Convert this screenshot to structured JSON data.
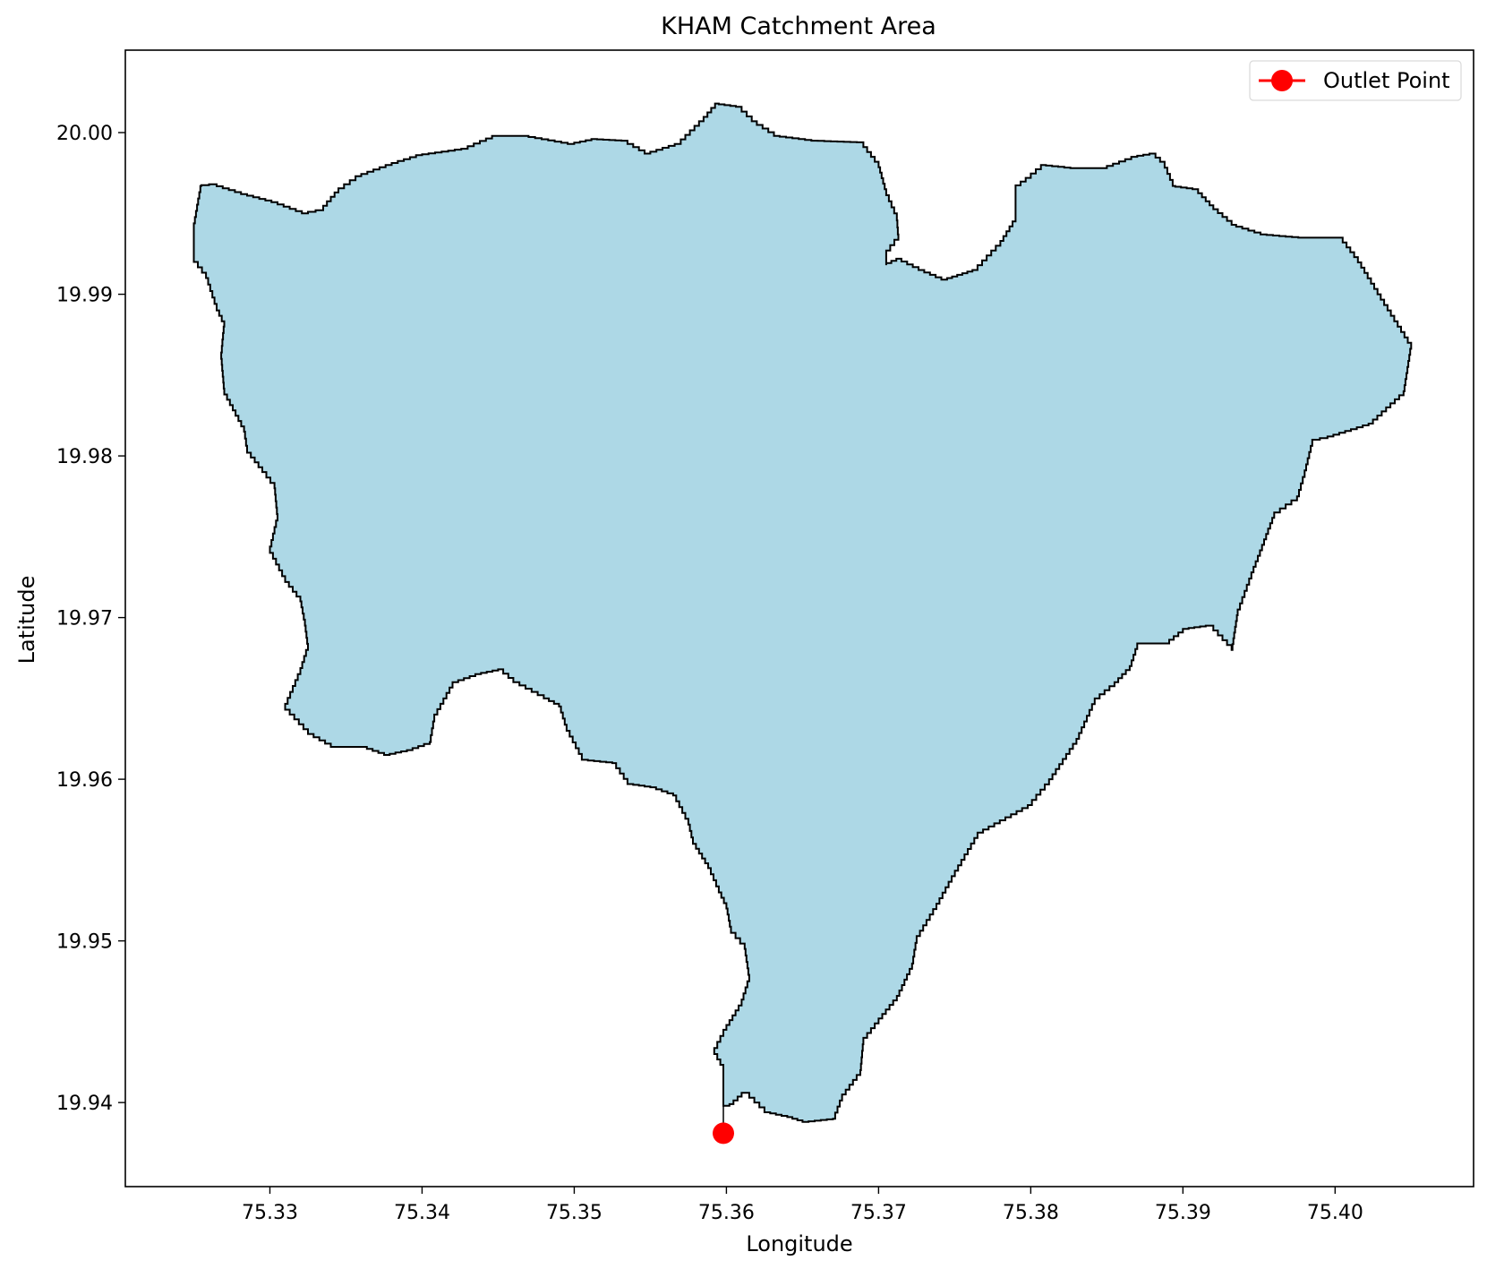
{
  "chart_data": {
    "type": "map",
    "title": "KHAM Catchment Area",
    "xlabel": "Longitude",
    "ylabel": "Latitude",
    "xlim": [
      75.3205,
      75.4091
    ],
    "ylim": [
      19.9348,
      20.0051
    ],
    "xticks": [
      75.33,
      75.34,
      75.35,
      75.36,
      75.37,
      75.38,
      75.39,
      75.4
    ],
    "xtick_labels": [
      "75.33",
      "75.34",
      "75.35",
      "75.36",
      "75.37",
      "75.38",
      "75.39",
      "75.40"
    ],
    "yticks": [
      19.94,
      19.95,
      19.96,
      19.97,
      19.98,
      19.99,
      20.0
    ],
    "ytick_labels": [
      "19.94",
      "19.95",
      "19.96",
      "19.97",
      "19.98",
      "19.99",
      "20.00"
    ],
    "grid": false,
    "legend": {
      "position": "top-right",
      "entries": [
        {
          "label": "Outlet Point",
          "color": "#ff0000",
          "marker": "circle"
        }
      ]
    },
    "catchment": {
      "fill": "#add8e6",
      "edge": "#000000",
      "boundary": [
        [
          75.3598,
          19.9398
        ],
        [
          75.3602,
          19.9399
        ],
        [
          75.361,
          19.9406
        ],
        [
          75.3615,
          19.9403
        ],
        [
          75.3625,
          19.9394
        ],
        [
          75.364,
          19.9391
        ],
        [
          75.365,
          19.9388
        ],
        [
          75.367,
          19.939
        ],
        [
          75.3676,
          19.9405
        ],
        [
          75.3688,
          19.942
        ],
        [
          75.369,
          19.944
        ],
        [
          75.37,
          19.9452
        ],
        [
          75.3712,
          19.9466
        ],
        [
          75.3722,
          19.9486
        ],
        [
          75.3725,
          19.9503
        ],
        [
          75.3738,
          19.9523
        ],
        [
          75.3748,
          19.954
        ],
        [
          75.3765,
          19.9567
        ],
        [
          75.3798,
          19.9584
        ],
        [
          75.3812,
          19.96
        ],
        [
          75.383,
          19.9625
        ],
        [
          75.3842,
          19.965
        ],
        [
          75.3855,
          19.966
        ],
        [
          75.3865,
          19.967
        ],
        [
          75.387,
          19.9684
        ],
        [
          75.3888,
          19.9684
        ],
        [
          75.39,
          19.9693
        ],
        [
          75.3915,
          19.9695
        ],
        [
          75.392,
          19.9692
        ],
        [
          75.3932,
          19.968
        ],
        [
          75.3936,
          19.9705
        ],
        [
          75.3945,
          19.9728
        ],
        [
          75.3952,
          19.9745
        ],
        [
          75.396,
          19.9765
        ],
        [
          75.3975,
          19.9775
        ],
        [
          75.398,
          19.9791
        ],
        [
          75.3985,
          19.981
        ],
        [
          75.3995,
          19.9812
        ],
        [
          75.4022,
          19.982
        ],
        [
          75.4045,
          19.984
        ],
        [
          75.405,
          19.987
        ],
        [
          75.403,
          19.99
        ],
        [
          75.4015,
          19.9923
        ],
        [
          75.4005,
          19.9935
        ],
        [
          75.398,
          19.9935
        ],
        [
          75.3955,
          19.9937
        ],
        [
          75.3935,
          19.9943
        ],
        [
          75.392,
          19.9955
        ],
        [
          75.391,
          19.9965
        ],
        [
          75.3895,
          19.9967
        ],
        [
          75.3888,
          19.9982
        ],
        [
          75.3882,
          19.9987
        ],
        [
          75.387,
          19.9985
        ],
        [
          75.385,
          19.9978
        ],
        [
          75.383,
          19.9978
        ],
        [
          75.381,
          19.998
        ],
        [
          75.38,
          19.9972
        ],
        [
          75.379,
          19.9965
        ],
        [
          75.379,
          19.9945
        ],
        [
          75.378,
          19.993
        ],
        [
          75.3765,
          19.9915
        ],
        [
          75.3755,
          19.9912
        ],
        [
          75.3745,
          19.9909
        ],
        [
          75.373,
          19.9915
        ],
        [
          75.3715,
          19.9922
        ],
        [
          75.3705,
          19.9918
        ],
        [
          75.3705,
          19.9927
        ],
        [
          75.3713,
          19.9937
        ],
        [
          75.3712,
          19.995
        ],
        [
          75.3705,
          19.9965
        ],
        [
          75.37,
          19.9982
        ],
        [
          75.369,
          19.9994
        ],
        [
          75.366,
          19.9995
        ],
        [
          75.3635,
          19.9998
        ],
        [
          75.362,
          20.0007
        ],
        [
          75.361,
          20.0016
        ],
        [
          75.3595,
          20.0018
        ],
        [
          75.3585,
          20.0007
        ],
        [
          75.357,
          19.9993
        ],
        [
          75.355,
          19.9987
        ],
        [
          75.3535,
          19.9995
        ],
        [
          75.3515,
          19.9996
        ],
        [
          75.35,
          19.9993
        ],
        [
          75.347,
          19.9998
        ],
        [
          75.345,
          19.9998
        ],
        [
          75.343,
          19.999
        ],
        [
          75.34,
          19.9986
        ],
        [
          75.338,
          19.998
        ],
        [
          75.336,
          19.9973
        ],
        [
          75.3345,
          19.9963
        ],
        [
          75.3335,
          19.9952
        ],
        [
          75.3325,
          19.995
        ],
        [
          75.3305,
          19.9957
        ],
        [
          75.3285,
          19.9962
        ],
        [
          75.3265,
          19.9968
        ],
        [
          75.3255,
          19.9967
        ],
        [
          75.325,
          19.994
        ],
        [
          75.325,
          19.992
        ],
        [
          75.3258,
          19.991
        ],
        [
          75.3265,
          19.989
        ],
        [
          75.327,
          19.988
        ],
        [
          75.3268,
          19.986
        ],
        [
          75.327,
          19.9838
        ],
        [
          75.3283,
          19.9815
        ],
        [
          75.3285,
          19.9802
        ],
        [
          75.3295,
          19.979
        ],
        [
          75.3303,
          19.978
        ],
        [
          75.3305,
          19.976
        ],
        [
          75.33,
          19.974
        ],
        [
          75.331,
          19.9722
        ],
        [
          75.332,
          19.971
        ],
        [
          75.3323,
          19.9695
        ],
        [
          75.3325,
          19.968
        ],
        [
          75.332,
          19.9665
        ],
        [
          75.331,
          19.9643
        ],
        [
          75.3325,
          19.9628
        ],
        [
          75.334,
          19.962
        ],
        [
          75.336,
          19.962
        ],
        [
          75.3375,
          19.9615
        ],
        [
          75.339,
          19.9618
        ],
        [
          75.3405,
          19.9623
        ],
        [
          75.3408,
          19.964
        ],
        [
          75.342,
          19.966
        ],
        [
          75.3435,
          19.9665
        ],
        [
          75.345,
          19.9668
        ],
        [
          75.346,
          19.966
        ],
        [
          75.348,
          19.965
        ],
        [
          75.349,
          19.9645
        ],
        [
          75.3495,
          19.963
        ],
        [
          75.3505,
          19.9612
        ],
        [
          75.3525,
          19.961
        ],
        [
          75.3535,
          19.9597
        ],
        [
          75.355,
          19.9595
        ],
        [
          75.3565,
          19.959
        ],
        [
          75.3575,
          19.9572
        ],
        [
          75.3578,
          19.956
        ],
        [
          75.3588,
          19.9545
        ],
        [
          75.3595,
          19.953
        ],
        [
          75.36,
          19.952
        ],
        [
          75.3603,
          19.9505
        ],
        [
          75.3612,
          19.9495
        ],
        [
          75.3615,
          19.9475
        ],
        [
          75.361,
          19.946
        ],
        [
          75.36,
          19.9445
        ],
        [
          75.3592,
          19.943
        ],
        [
          75.3598,
          19.942
        ],
        [
          75.3598,
          19.9398
        ]
      ]
    },
    "outlet_point": {
      "lon": 75.3598,
      "lat": 19.9381,
      "color": "#ff0000"
    }
  }
}
